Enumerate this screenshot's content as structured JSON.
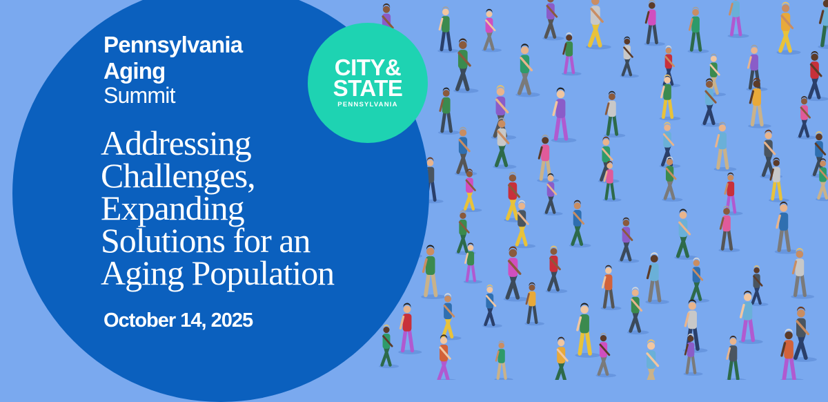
{
  "event": {
    "name_line1": "Pennsylvania",
    "name_line2": "Aging",
    "name_line3": "Summit",
    "headline": [
      "Addressing",
      "Challenges,",
      "Expanding",
      "Solutions for an",
      "Aging Population"
    ],
    "date": "October 14, 2025"
  },
  "logo": {
    "line1": "CITY&",
    "line2": "STATE",
    "line3": "PENNSYLVANIA"
  },
  "colors": {
    "background": "#7aa9ef",
    "circle": "#0b60be",
    "logo": "#1ed3b2",
    "text": "#ffffff"
  }
}
